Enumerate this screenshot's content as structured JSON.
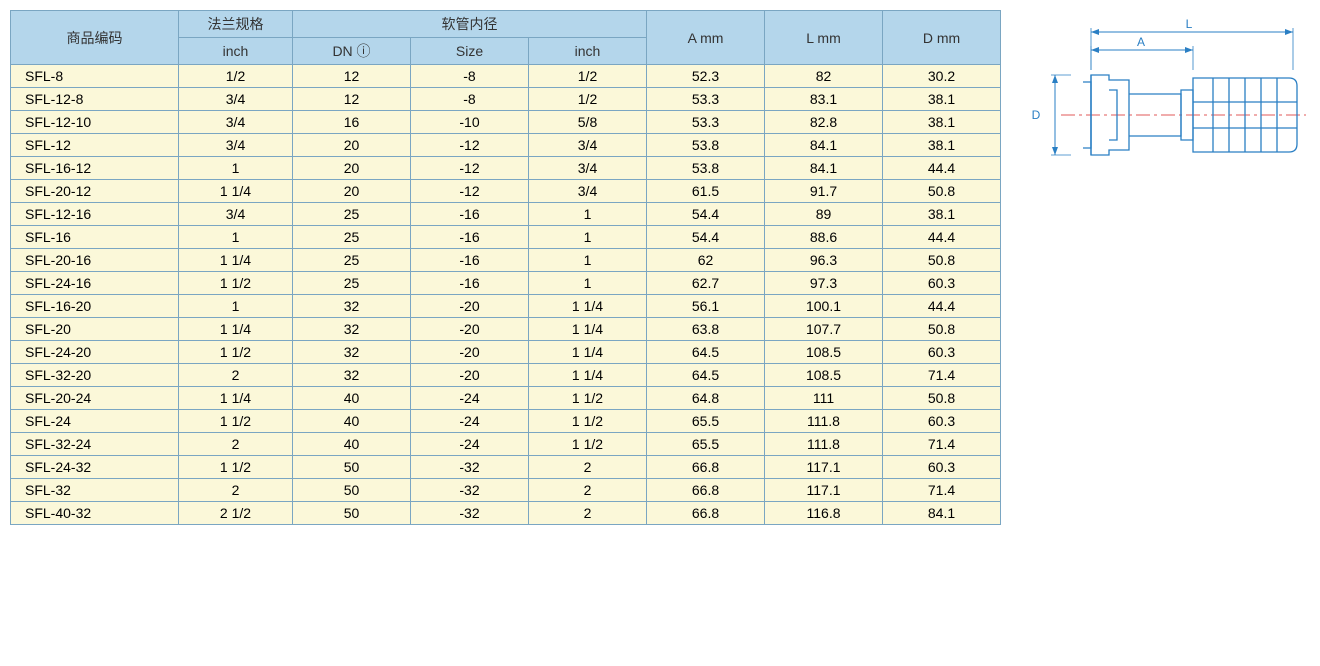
{
  "header": {
    "code": "商品编码",
    "flange": "法兰规格",
    "flange_sub": "inch",
    "hose_id": "软管内径",
    "dn": "DN ⓘ",
    "size": "Size",
    "inch": "inch",
    "a": "A mm",
    "l": "L mm",
    "d": "D mm"
  },
  "rows": [
    {
      "code": "SFL-8",
      "flange": "1/2",
      "dn": "12",
      "size": "-8",
      "inch": "1/2",
      "a": "52.3",
      "l": "82",
      "d": "30.2"
    },
    {
      "code": "SFL-12-8",
      "flange": "3/4",
      "dn": "12",
      "size": "-8",
      "inch": "1/2",
      "a": "53.3",
      "l": "83.1",
      "d": "38.1"
    },
    {
      "code": "SFL-12-10",
      "flange": "3/4",
      "dn": "16",
      "size": "-10",
      "inch": "5/8",
      "a": "53.3",
      "l": "82.8",
      "d": "38.1"
    },
    {
      "code": "SFL-12",
      "flange": "3/4",
      "dn": "20",
      "size": "-12",
      "inch": "3/4",
      "a": "53.8",
      "l": "84.1",
      "d": "38.1"
    },
    {
      "code": "SFL-16-12",
      "flange": "1",
      "dn": "20",
      "size": "-12",
      "inch": "3/4",
      "a": "53.8",
      "l": "84.1",
      "d": "44.4"
    },
    {
      "code": "SFL-20-12",
      "flange": "1 1/4",
      "dn": "20",
      "size": "-12",
      "inch": "3/4",
      "a": "61.5",
      "l": "91.7",
      "d": "50.8"
    },
    {
      "code": "SFL-12-16",
      "flange": "3/4",
      "dn": "25",
      "size": "-16",
      "inch": "1",
      "a": "54.4",
      "l": "89",
      "d": "38.1"
    },
    {
      "code": "SFL-16",
      "flange": "1",
      "dn": "25",
      "size": "-16",
      "inch": "1",
      "a": "54.4",
      "l": "88.6",
      "d": "44.4"
    },
    {
      "code": "SFL-20-16",
      "flange": "1 1/4",
      "dn": "25",
      "size": "-16",
      "inch": "1",
      "a": "62",
      "l": "96.3",
      "d": "50.8"
    },
    {
      "code": "SFL-24-16",
      "flange": "1 1/2",
      "dn": "25",
      "size": "-16",
      "inch": "1",
      "a": "62.7",
      "l": "97.3",
      "d": "60.3"
    },
    {
      "code": "SFL-16-20",
      "flange": "1",
      "dn": "32",
      "size": "-20",
      "inch": "1 1/4",
      "a": "56.1",
      "l": "100.1",
      "d": "44.4"
    },
    {
      "code": "SFL-20",
      "flange": "1 1/4",
      "dn": "32",
      "size": "-20",
      "inch": "1 1/4",
      "a": "63.8",
      "l": "107.7",
      "d": "50.8"
    },
    {
      "code": "SFL-24-20",
      "flange": "1 1/2",
      "dn": "32",
      "size": "-20",
      "inch": "1 1/4",
      "a": "64.5",
      "l": "108.5",
      "d": "60.3"
    },
    {
      "code": "SFL-32-20",
      "flange": "2",
      "dn": "32",
      "size": "-20",
      "inch": "1 1/4",
      "a": "64.5",
      "l": "108.5",
      "d": "71.4"
    },
    {
      "code": "SFL-20-24",
      "flange": "1 1/4",
      "dn": "40",
      "size": "-24",
      "inch": "1 1/2",
      "a": "64.8",
      "l": "111",
      "d": "50.8"
    },
    {
      "code": "SFL-24",
      "flange": "1 1/2",
      "dn": "40",
      "size": "-24",
      "inch": "1 1/2",
      "a": "65.5",
      "l": "111.8",
      "d": "60.3"
    },
    {
      "code": "SFL-32-24",
      "flange": "2",
      "dn": "40",
      "size": "-24",
      "inch": "1 1/2",
      "a": "65.5",
      "l": "111.8",
      "d": "71.4"
    },
    {
      "code": "SFL-24-32",
      "flange": "1 1/2",
      "dn": "50",
      "size": "-32",
      "inch": "2",
      "a": "66.8",
      "l": "117.1",
      "d": "60.3"
    },
    {
      "code": "SFL-32",
      "flange": "2",
      "dn": "50",
      "size": "-32",
      "inch": "2",
      "a": "66.8",
      "l": "117.1",
      "d": "71.4"
    },
    {
      "code": "SFL-40-32",
      "flange": "2 1/2",
      "dn": "50",
      "size": "-32",
      "inch": "2",
      "a": "66.8",
      "l": "116.8",
      "d": "84.1"
    }
  ],
  "diagram": {
    "label_A": "A",
    "label_L": "L",
    "label_D": "D",
    "colors": {
      "line": "#2a7fc4",
      "center": "#e05a5a"
    }
  }
}
